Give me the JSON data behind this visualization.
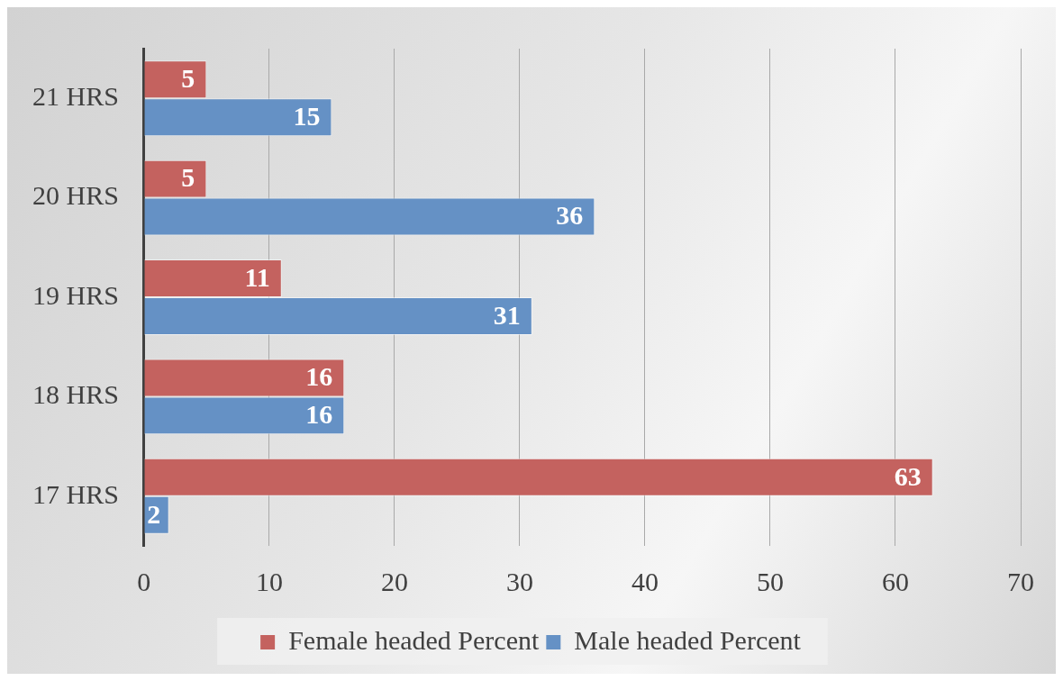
{
  "chart_data": {
    "type": "bar",
    "orientation": "horizontal",
    "categories": [
      "21 HRS",
      "20 HRS",
      "19 HRS",
      "18 HRS",
      "17 HRS"
    ],
    "series": [
      {
        "name": "Female headed Percent",
        "color": "#c4625f",
        "values": [
          5,
          5,
          11,
          16,
          63
        ]
      },
      {
        "name": "Male headed Percent",
        "color": "#6591c5",
        "values": [
          15,
          36,
          31,
          16,
          2
        ]
      }
    ],
    "xlim": [
      0,
      70
    ],
    "xticks": [
      0,
      10,
      20,
      30,
      40,
      50,
      60,
      70
    ],
    "grid": "x",
    "legend": "bottom",
    "data_labels": true
  }
}
